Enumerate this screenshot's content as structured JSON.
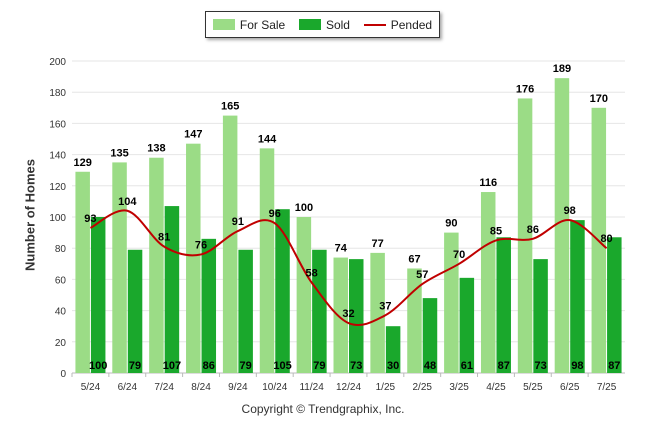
{
  "chart_data": {
    "type": "bar",
    "title": "",
    "xlabel": "",
    "ylabel": "Number of Homes",
    "ylim": [
      0,
      200
    ],
    "yticks": [
      0,
      20,
      40,
      60,
      80,
      100,
      120,
      140,
      160,
      180,
      200
    ],
    "grid": true,
    "legend_position": "top-center",
    "categories": [
      "5/24",
      "6/24",
      "7/24",
      "8/24",
      "9/24",
      "10/24",
      "11/24",
      "12/24",
      "1/25",
      "2/25",
      "3/25",
      "4/25",
      "5/25",
      "6/25",
      "7/25"
    ],
    "series": [
      {
        "name": "For Sale",
        "kind": "bar",
        "color": "#9bdc86",
        "values": [
          129,
          135,
          138,
          147,
          165,
          144,
          100,
          74,
          77,
          67,
          90,
          116,
          176,
          189,
          170
        ]
      },
      {
        "name": "Sold",
        "kind": "bar",
        "color": "#1aa82c",
        "values": [
          100,
          79,
          107,
          86,
          79,
          105,
          79,
          73,
          30,
          48,
          61,
          87,
          73,
          98,
          87
        ]
      },
      {
        "name": "Pended",
        "kind": "line",
        "color": "#c00000",
        "values": [
          93,
          104,
          81,
          76,
          91,
          96,
          58,
          32,
          37,
          57,
          70,
          85,
          86,
          98,
          80
        ]
      }
    ]
  },
  "footer": {
    "copyright": "Copyright © Trendgraphix, Inc."
  }
}
